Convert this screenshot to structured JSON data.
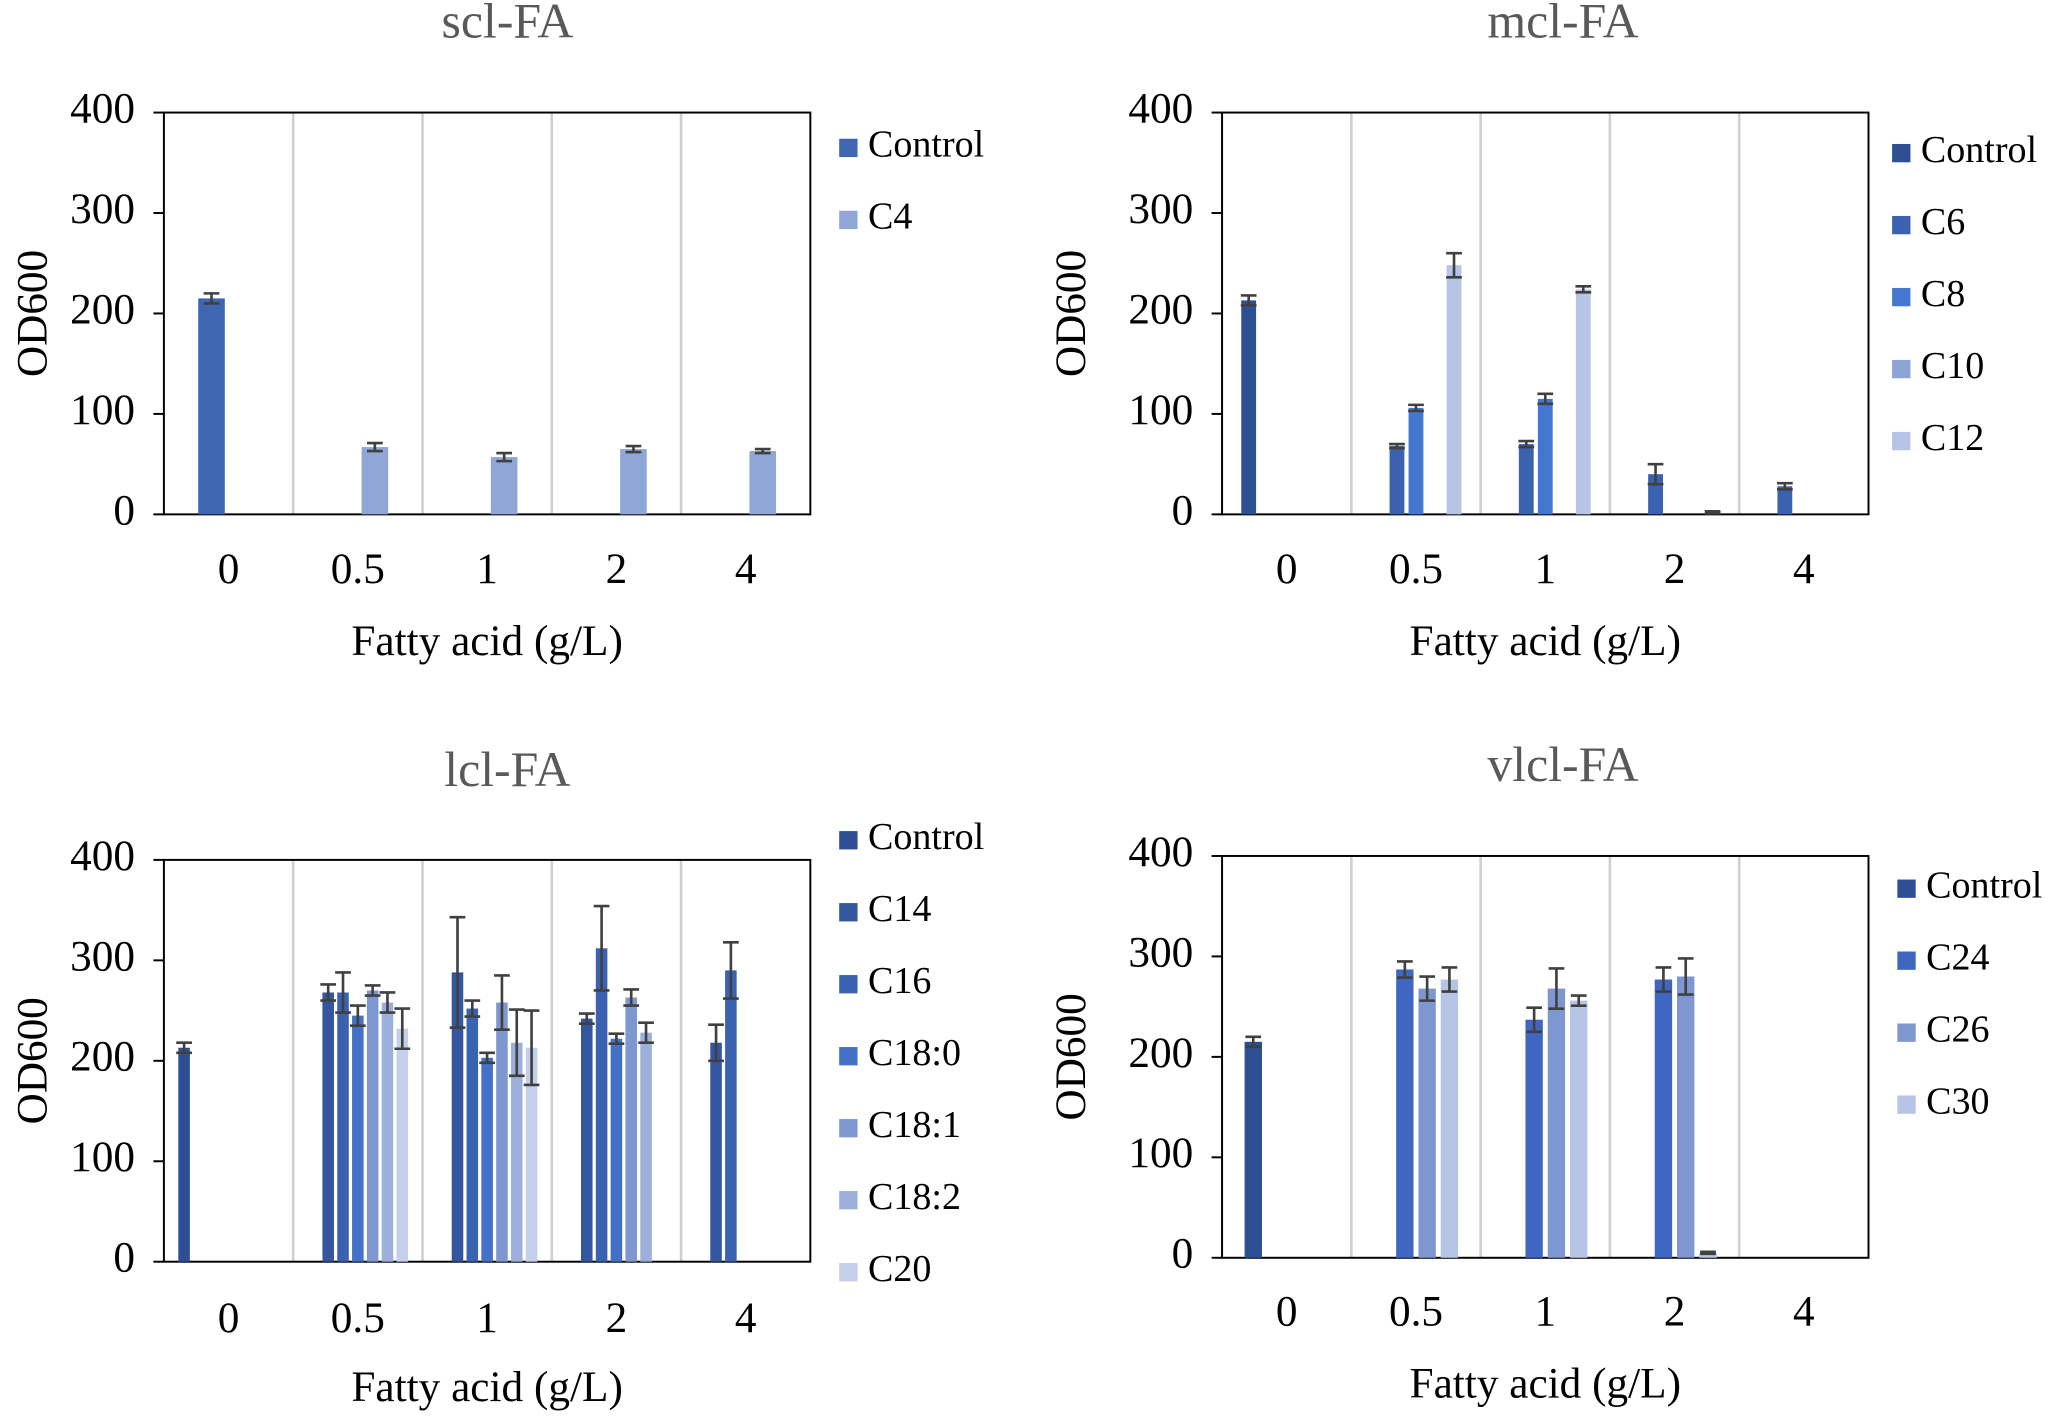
{
  "chart_data": [
    {
      "type": "bar",
      "title": "scl-FA",
      "x_label": "Fatty acid (g/L)",
      "y_label": "OD600",
      "categories": [
        "0",
        "0.5",
        "1",
        "2",
        "4"
      ],
      "series": [
        {
          "name": "Control",
          "color": "#3f66b0",
          "values": [
            215,
            null,
            null,
            null,
            null
          ],
          "errors": [
            5,
            null,
            null,
            null,
            null
          ]
        },
        {
          "name": "C4",
          "color": "#8fa6d6",
          "values": [
            null,
            67,
            57,
            65,
            63
          ],
          "errors": [
            null,
            4,
            4,
            3,
            2
          ]
        }
      ],
      "ylim": [
        0,
        400
      ],
      "yticks": [
        0,
        100,
        200,
        300,
        400
      ]
    },
    {
      "type": "bar",
      "title": "mcl-FA",
      "x_label": "Fatty acid (g/L)",
      "y_label": "OD600",
      "categories": [
        "0",
        "0.5",
        "1",
        "2",
        "4"
      ],
      "series": [
        {
          "name": "Control",
          "color": "#2f4f94",
          "values": [
            213,
            null,
            null,
            null,
            null
          ],
          "errors": [
            5,
            null,
            null,
            null,
            null
          ]
        },
        {
          "name": "C6",
          "color": "#3b62b0",
          "values": [
            null,
            68,
            70,
            40,
            28
          ],
          "errors": [
            null,
            2,
            3,
            10,
            3
          ]
        },
        {
          "name": "C8",
          "color": "#4477d0",
          "values": [
            null,
            106,
            115,
            null,
            null
          ],
          "errors": [
            null,
            3,
            5,
            null,
            null
          ]
        },
        {
          "name": "C10",
          "color": "#8da3d6",
          "values": [
            null,
            null,
            null,
            null,
            null
          ],
          "errors": [
            null,
            null,
            null,
            null,
            null
          ]
        },
        {
          "name": "C12",
          "color": "#b6c4e6",
          "values": [
            null,
            248,
            224,
            2,
            null
          ],
          "errors": [
            null,
            12,
            3,
            1,
            null
          ]
        }
      ],
      "ylim": [
        0,
        400
      ],
      "yticks": [
        0,
        100,
        200,
        300,
        400
      ]
    },
    {
      "type": "bar",
      "title": "lcl-FA",
      "x_label": "Fatty acid (g/L)",
      "y_label": "OD600",
      "categories": [
        "0",
        "0.5",
        "1",
        "2",
        "4"
      ],
      "series": [
        {
          "name": "Control",
          "color": "#2f4f94",
          "values": [
            213,
            null,
            null,
            null,
            null
          ],
          "errors": [
            5,
            null,
            null,
            null,
            null
          ]
        },
        {
          "name": "C14",
          "color": "#34569f",
          "values": [
            null,
            268,
            288,
            242,
            218
          ],
          "errors": [
            null,
            8,
            55,
            5,
            18
          ]
        },
        {
          "name": "C16",
          "color": "#3b62b0",
          "values": [
            null,
            268,
            252,
            312,
            290
          ],
          "errors": [
            null,
            20,
            8,
            42,
            28
          ]
        },
        {
          "name": "C18:0",
          "color": "#4470c8",
          "values": [
            null,
            245,
            203,
            222,
            null
          ],
          "errors": [
            null,
            10,
            5,
            5,
            null
          ]
        },
        {
          "name": "C18:1",
          "color": "#7f97d0",
          "values": [
            null,
            270,
            258,
            263,
            null
          ],
          "errors": [
            null,
            5,
            27,
            8,
            null
          ]
        },
        {
          "name": "C18:2",
          "color": "#9db0dc",
          "values": [
            null,
            258,
            218,
            228,
            null
          ],
          "errors": [
            null,
            10,
            33,
            10,
            null
          ]
        },
        {
          "name": "C20",
          "color": "#c4cfeb",
          "values": [
            null,
            232,
            213,
            null,
            null
          ],
          "errors": [
            null,
            20,
            37,
            null,
            null
          ]
        }
      ],
      "ylim": [
        0,
        400
      ],
      "yticks": [
        0,
        100,
        200,
        300,
        400
      ]
    },
    {
      "type": "bar",
      "title": "vlcl-FA",
      "x_label": "Fatty acid (g/L)",
      "y_label": "OD600",
      "categories": [
        "0",
        "0.5",
        "1",
        "2",
        "4"
      ],
      "series": [
        {
          "name": "Control",
          "color": "#2f4f94",
          "values": [
            215,
            null,
            null,
            null,
            null
          ],
          "errors": [
            5,
            null,
            null,
            null,
            null
          ]
        },
        {
          "name": "C24",
          "color": "#3f66c0",
          "values": [
            null,
            287,
            237,
            277,
            null
          ],
          "errors": [
            null,
            8,
            12,
            12,
            null
          ]
        },
        {
          "name": "C26",
          "color": "#7f97d0",
          "values": [
            null,
            268,
            268,
            280,
            null
          ],
          "errors": [
            null,
            12,
            20,
            18,
            null
          ]
        },
        {
          "name": "C30",
          "color": "#b6c4e6",
          "values": [
            null,
            277,
            256,
            5,
            null
          ],
          "errors": [
            null,
            12,
            5,
            1,
            null
          ]
        }
      ],
      "ylim": [
        0,
        400
      ],
      "yticks": [
        0,
        100,
        200,
        300,
        400
      ]
    }
  ]
}
